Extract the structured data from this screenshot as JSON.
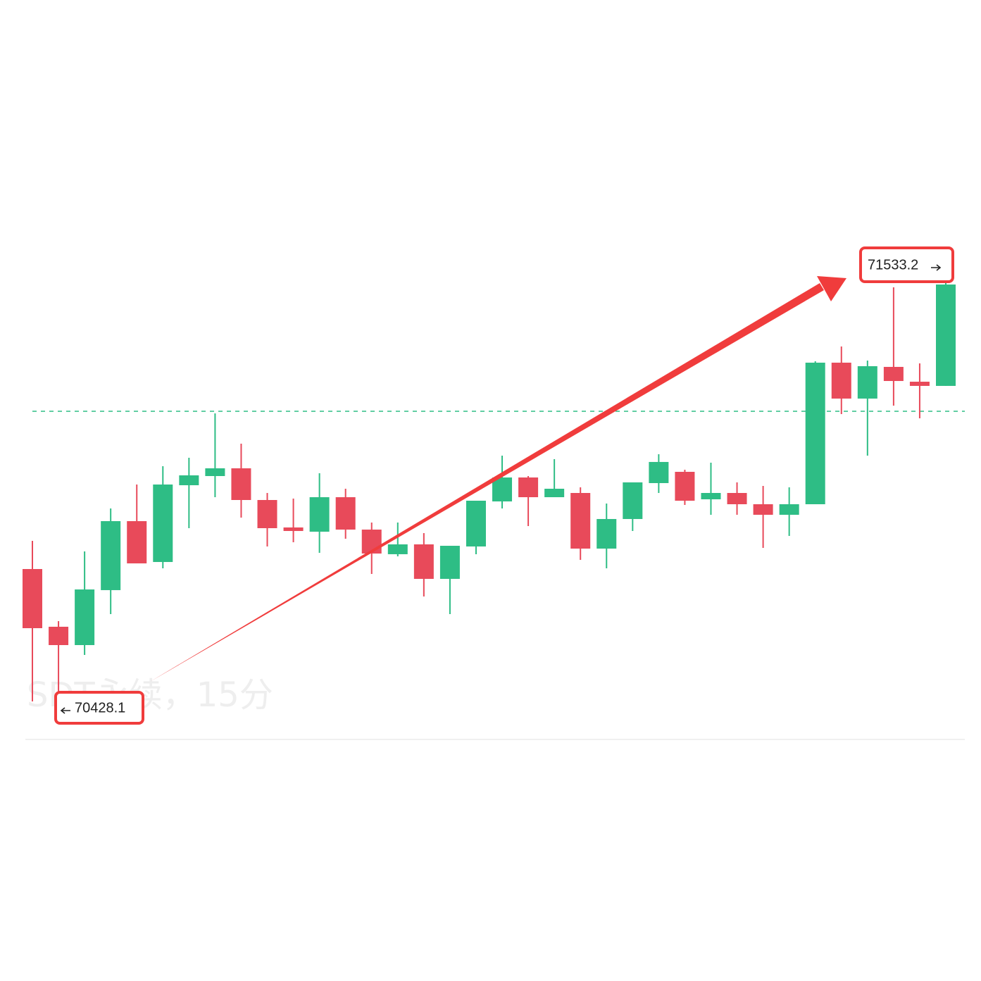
{
  "chart_data": {
    "type": "candlestick",
    "watermark": "SDT永续，15分",
    "up_color": "#2ebd85",
    "down_color": "#e84a5a",
    "ylim": [
      69727.6,
      72210.5
    ],
    "price_line": 71169.6,
    "open": [
      70770.3,
      70624.2,
      70577.8,
      70716.9,
      70891.5,
      70788.1,
      70982.4,
      71005.6,
      71025.2,
      70945.0,
      70875.5,
      70864.8,
      70952.1,
      70870.1,
      70807.8,
      70832.7,
      70745.4,
      70827.4,
      70941.4,
      71002.0,
      70952.1,
      70962.8,
      70822.0,
      70896.9,
      70987.8,
      71016.3,
      70946.8,
      70962.8,
      70934.3,
      70907.6,
      70934.3,
      71292.6,
      71201.7,
      71281.9,
      71244.4,
      71233.8
    ],
    "high": [
      70841.6,
      70638.4,
      70814.9,
      70923.6,
      70984.2,
      71030.6,
      71051.9,
      71164.2,
      71087.6,
      70962.8,
      70948.6,
      71012.7,
      70973.5,
      70888.0,
      70888.0,
      70861.2,
      70829.1,
      70943.2,
      71057.3,
      71005.6,
      71048.4,
      70977.1,
      70936.1,
      70989.6,
      71060.9,
      71021.6,
      71039.5,
      70989.6,
      70980.7,
      70977.1,
      71296.1,
      71333.6,
      71297.9,
      71483.3,
      71290.8,
      71533.2
    ],
    "low": [
      70435.2,
      70428.1,
      70552.9,
      70656.2,
      70784.6,
      70772.1,
      70873.7,
      70952.1,
      70900.4,
      70827.4,
      70838.1,
      70811.3,
      70847.0,
      70757.8,
      70802.4,
      70700.8,
      70656.2,
      70807.8,
      70923.6,
      70879.1,
      70952.1,
      70793.5,
      70772.1,
      70866.6,
      70962.8,
      70932.5,
      70907.6,
      70907.6,
      70823.8,
      70854.1,
      70934.3,
      71162.5,
      71057.3,
      71183.8,
      71151.8,
      71233.8
    ],
    "close": [
      70620.6,
      70577.8,
      70718.6,
      70891.5,
      70784.6,
      70984.2,
      71007.4,
      71025.2,
      70945.0,
      70873.7,
      70866.6,
      70952.1,
      70870.1,
      70809.5,
      70832.7,
      70745.4,
      70829.1,
      70943.2,
      71002.0,
      70952.1,
      70973.5,
      70822.0,
      70896.9,
      70989.6,
      71041.3,
      70943.2,
      70962.8,
      70934.3,
      70907.6,
      70934.3,
      71292.6,
      71201.7,
      71283.7,
      71246.2,
      71233.8,
      71490.4
    ]
  }
}
